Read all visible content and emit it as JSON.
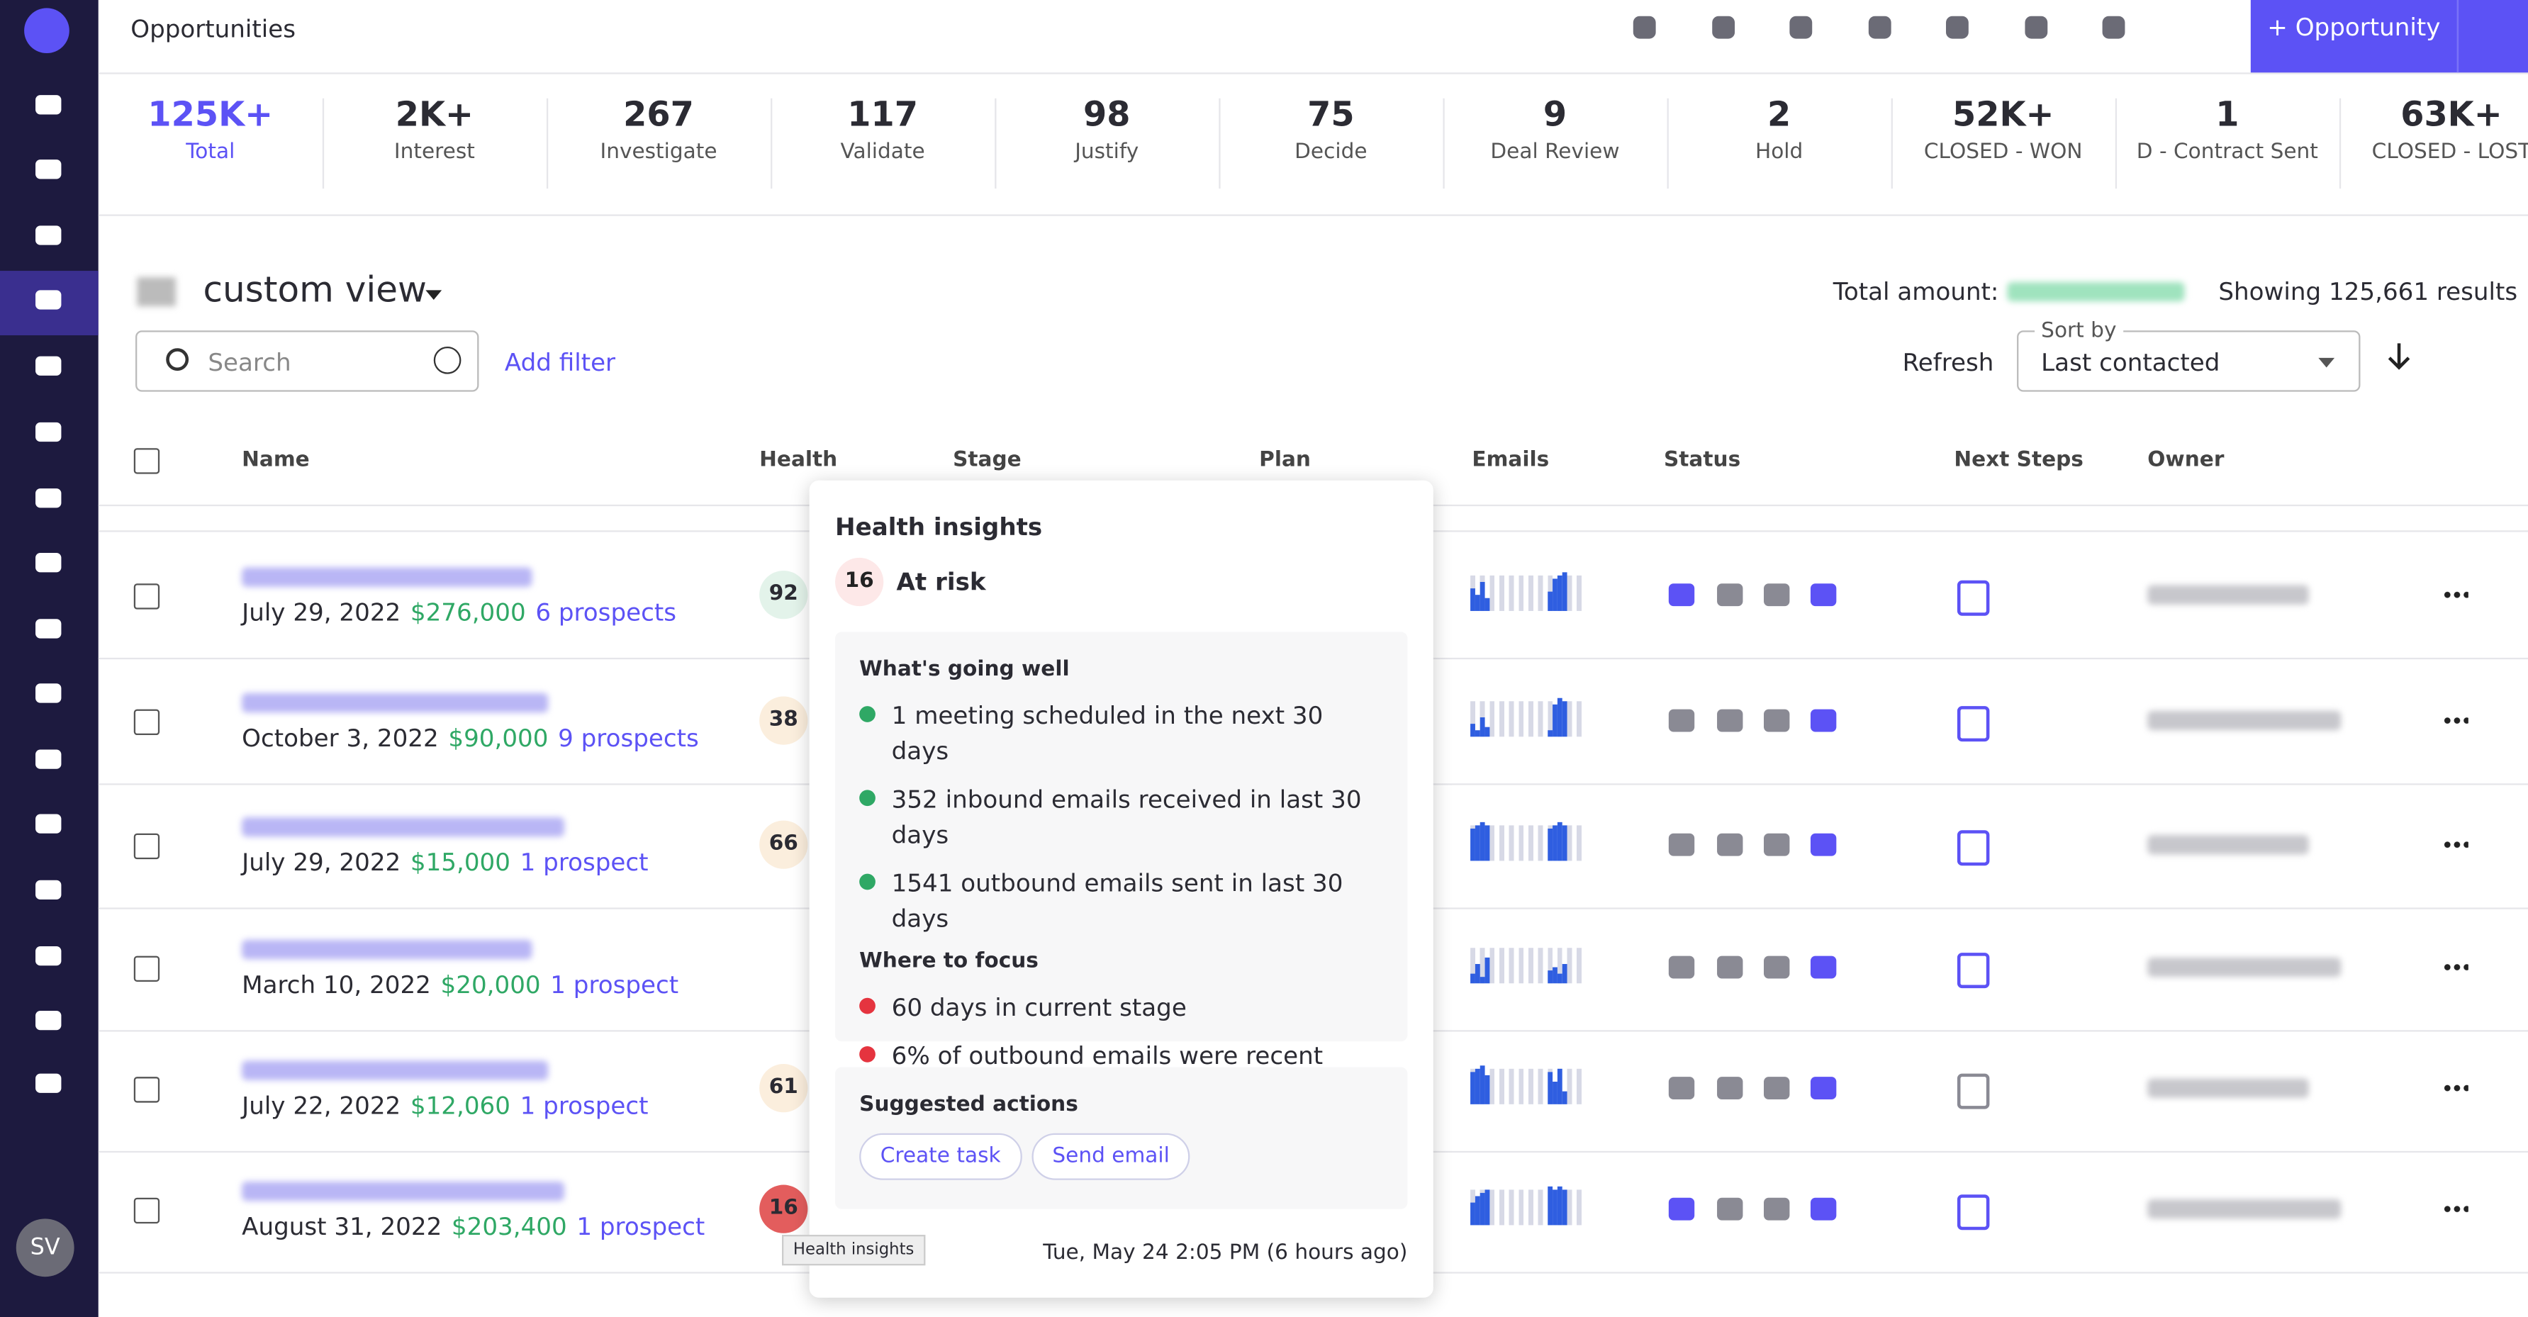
{
  "header": {
    "title": "Opportunities",
    "new_button": "+ Opportunity"
  },
  "stages": [
    {
      "value": "125K+",
      "label": "Total"
    },
    {
      "value": "2K+",
      "label": "Interest"
    },
    {
      "value": "267",
      "label": "Investigate"
    },
    {
      "value": "117",
      "label": "Validate"
    },
    {
      "value": "98",
      "label": "Justify"
    },
    {
      "value": "75",
      "label": "Decide"
    },
    {
      "value": "9",
      "label": "Deal Review"
    },
    {
      "value": "2",
      "label": "Hold"
    },
    {
      "value": "52K+",
      "label": "CLOSED - WON"
    },
    {
      "value": "1",
      "label": "D - Contract Sent"
    },
    {
      "value": "63K+",
      "label": "CLOSED - LOST"
    }
  ],
  "view": {
    "title": "custom view",
    "total_amount_label": "Total amount:",
    "results": "Showing 125,661 results",
    "search_placeholder": "Search",
    "add_filter": "Add filter",
    "refresh": "Refresh",
    "sort_label": "Sort by",
    "sort_value": "Last contacted"
  },
  "table": {
    "columns": [
      "Name",
      "Health",
      "Stage",
      "Plan",
      "Emails",
      "Status",
      "Next Steps",
      "Owner"
    ],
    "rows": [
      {
        "date": "July 29, 2022",
        "amount": "$276,000",
        "prospects": "6 prospects",
        "health": 92
      },
      {
        "date": "October 3, 2022",
        "amount": "$90,000",
        "prospects": "9 prospects",
        "health": 38
      },
      {
        "date": "July 29, 2022",
        "amount": "$15,000",
        "prospects": "1 prospect",
        "health": 66
      },
      {
        "date": "March 10, 2022",
        "amount": "$20,000",
        "prospects": "1 prospect",
        "health": null
      },
      {
        "date": "July 22, 2022",
        "amount": "$12,060",
        "prospects": "1 prospect",
        "health": 61
      },
      {
        "date": "August 31, 2022",
        "amount": "$203,400",
        "prospects": "1 prospect",
        "health": 16
      }
    ]
  },
  "popover": {
    "title": "Health insights",
    "score": 16,
    "status": "At risk",
    "going_well_heading": "What's going well",
    "going_well": [
      "1 meeting scheduled in the next 30 days",
      "352 inbound emails received in last 30 days",
      "1541 outbound emails sent in last 30 days"
    ],
    "focus_heading": "Where to focus",
    "focus": [
      "60 days in current stage",
      "6% of outbound emails were recent"
    ],
    "actions_heading": "Suggested actions",
    "actions": [
      "Create task",
      "Send email"
    ],
    "timestamp": "Tue, May 24 2:05 PM (6 hours ago)"
  },
  "tooltip": "Health insights",
  "user": {
    "initials": "SV"
  }
}
